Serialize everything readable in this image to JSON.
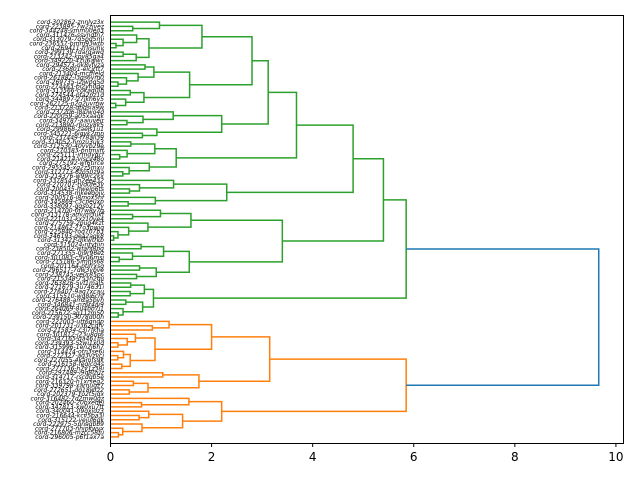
{
  "chart_data": {
    "type": "dendrogram",
    "orientation": "left",
    "title": "",
    "xlabel": "",
    "ylabel": "",
    "xlim": [
      0,
      10.15
    ],
    "xticks": [
      0,
      2,
      4,
      6,
      8,
      10
    ],
    "xtick_labels": [
      "0",
      "2",
      "4",
      "6",
      "8",
      "10"
    ],
    "grid": false,
    "colors": {
      "cluster_green": "#2ca02c",
      "cluster_orange": "#ff7f0e",
      "above_threshold": "#1f77b4"
    },
    "leaf_count": 98,
    "leaf_labels_sample": {
      "first": "cord-302862-znnlyz3x",
      "last": "cord-296005-p6f1ax7a"
    },
    "leaf_label_prefix": "cord-",
    "clusters": [
      {
        "color": "cluster_green",
        "leaf_count": 70,
        "merge_height": 5.85,
        "subclusters": [
          {
            "leaf_count": 61,
            "merge_height": 5.4,
            "subclusters": [
              {
                "leaf_count": 44,
                "merge_height": 4.8,
                "subclusters": [
                  {
                    "leaf_count": 37,
                    "merge_height": 3.68,
                    "subclusters": [
                      {
                        "leaf_count": 28,
                        "merge_height": 3.12,
                        "subclusters": [
                          {
                            "leaf_count": 21,
                            "merge_height": 2.8
                          },
                          {
                            "leaf_count": 7,
                            "merge_height": 2.2
                          }
                        ]
                      },
                      {
                        "leaf_count": 9,
                        "merge_height": 1.3
                      }
                    ]
                  },
                  {
                    "leaf_count": 7,
                    "merge_height": 2.3
                  }
                ]
              },
              {
                "leaf_count": 17,
                "merge_height": 3.4
              }
            ]
          },
          {
            "leaf_count": 9,
            "merge_height": 0.85
          }
        ]
      },
      {
        "color": "cluster_orange",
        "leaf_count": 28,
        "merge_height": 5.85,
        "subclusters": [
          {
            "leaf_count": 18,
            "merge_height": 3.15,
            "subclusters": [
              {
                "leaf_count": 12,
                "merge_height": 2.0
              },
              {
                "leaf_count": 6,
                "merge_height": 1.75
              }
            ]
          },
          {
            "leaf_count": 10,
            "merge_height": 2.2
          }
        ]
      }
    ],
    "root_merge_height": 9.66
  }
}
